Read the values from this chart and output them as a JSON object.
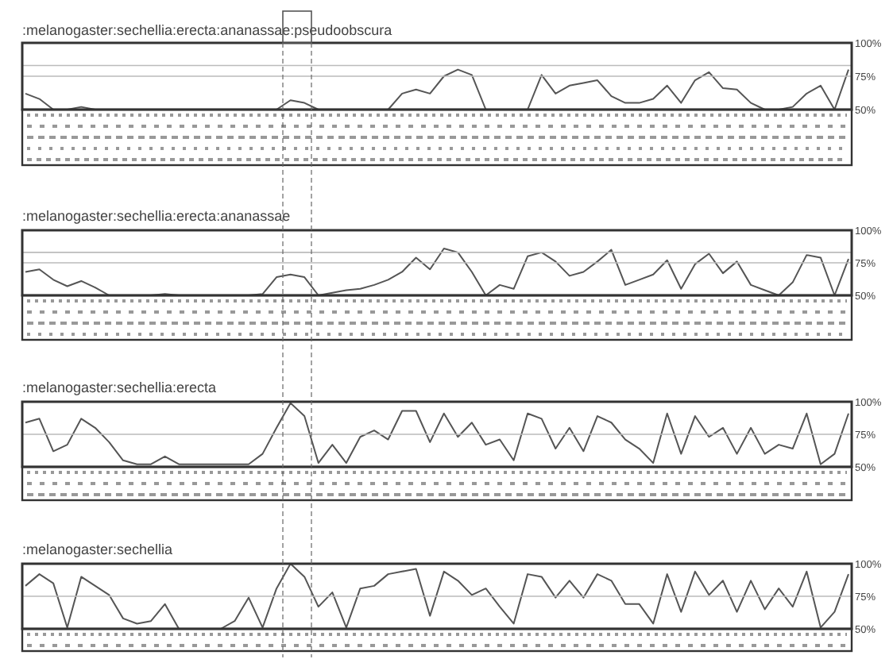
{
  "chart_data": [
    {
      "type": "line",
      "title": ":melanogaster:sechellia:erecta:ananassae:pseudoobscura",
      "categories": [
        null,
        null,
        null,
        null,
        null,
        null,
        null,
        null,
        null,
        null,
        null,
        null,
        null,
        null,
        null,
        null,
        null,
        null,
        null,
        null,
        null,
        null,
        null,
        null,
        null,
        null,
        null,
        null,
        null,
        null,
        null,
        null,
        null,
        null,
        null,
        null,
        null,
        null,
        null,
        null,
        null,
        null,
        null,
        null,
        null,
        null,
        null,
        null,
        null,
        null,
        null,
        null,
        null,
        null,
        null,
        null,
        null,
        null,
        null,
        null
      ],
      "series": [
        {
          "color": "#555555",
          "values": [
            62,
            58,
            50,
            50,
            52,
            50,
            50,
            50,
            50,
            50,
            50,
            50,
            50,
            50,
            50,
            50,
            50,
            50,
            50,
            57,
            55,
            50,
            50,
            50,
            50,
            50,
            50,
            62,
            65,
            62,
            75,
            80,
            76,
            50,
            50,
            50,
            50,
            76,
            62,
            68,
            70,
            72,
            60,
            55,
            55,
            58,
            68,
            55,
            72,
            78,
            66,
            65,
            55,
            50,
            50,
            52,
            62,
            68,
            50,
            80
          ]
        }
      ],
      "ylim": [
        50,
        100
      ],
      "yticks": [
        {
          "value": 50,
          "label": "50%"
        },
        {
          "value": 75,
          "label": "75%"
        },
        {
          "value": 100,
          "label": "100%"
        }
      ],
      "tick_labels": "y",
      "ref_lines": [
        {
          "axis": "y",
          "value": 75,
          "color": "#bbbbbb"
        },
        {
          "axis": "y",
          "value": 83,
          "color": "#bbbbbb"
        }
      ],
      "marker": "none",
      "line_style": "solid"
    },
    {
      "type": "line",
      "title": ":melanogaster:sechellia:erecta:ananassae",
      "categories": [
        null,
        null,
        null,
        null,
        null,
        null,
        null,
        null,
        null,
        null,
        null,
        null,
        null,
        null,
        null,
        null,
        null,
        null,
        null,
        null,
        null,
        null,
        null,
        null,
        null,
        null,
        null,
        null,
        null,
        null,
        null,
        null,
        null,
        null,
        null,
        null,
        null,
        null,
        null,
        null,
        null,
        null,
        null,
        null,
        null,
        null,
        null,
        null,
        null,
        null,
        null,
        null,
        null,
        null,
        null,
        null,
        null,
        null,
        null,
        null
      ],
      "series": [
        {
          "color": "#555555",
          "values": [
            68,
            70,
            62,
            57,
            61,
            56,
            50,
            50,
            50,
            50,
            51,
            50,
            50,
            50,
            50,
            50,
            50,
            51,
            64,
            66,
            64,
            50,
            52,
            54,
            55,
            58,
            62,
            68,
            79,
            70,
            86,
            83,
            68,
            50,
            58,
            55,
            80,
            83,
            76,
            65,
            68,
            76,
            85,
            58,
            62,
            66,
            77,
            55,
            74,
            82,
            67,
            76,
            58,
            54,
            50,
            60,
            81,
            79,
            50,
            78
          ]
        }
      ],
      "ylim": [
        50,
        100
      ],
      "yticks": [
        {
          "value": 50,
          "label": "50%"
        },
        {
          "value": 75,
          "label": "75%"
        },
        {
          "value": 100,
          "label": "100%"
        }
      ],
      "tick_labels": "y",
      "ref_lines": [
        {
          "axis": "y",
          "value": 75,
          "color": "#bbbbbb"
        },
        {
          "axis": "y",
          "value": 83,
          "color": "#bbbbbb"
        }
      ],
      "marker": "none",
      "line_style": "solid"
    },
    {
      "type": "line",
      "title": ":melanogaster:sechellia:erecta",
      "categories": [
        null,
        null,
        null,
        null,
        null,
        null,
        null,
        null,
        null,
        null,
        null,
        null,
        null,
        null,
        null,
        null,
        null,
        null,
        null,
        null,
        null,
        null,
        null,
        null,
        null,
        null,
        null,
        null,
        null,
        null,
        null,
        null,
        null,
        null,
        null,
        null,
        null,
        null,
        null,
        null,
        null,
        null,
        null,
        null,
        null,
        null,
        null,
        null,
        null,
        null,
        null,
        null,
        null,
        null,
        null,
        null,
        null,
        null,
        null,
        null
      ],
      "series": [
        {
          "color": "#555555",
          "values": [
            84,
            87,
            62,
            67,
            87,
            80,
            69,
            55,
            52,
            52,
            58,
            52,
            52,
            52,
            52,
            52,
            52,
            60,
            80,
            99,
            89,
            53,
            67,
            53,
            73,
            78,
            71,
            93,
            93,
            69,
            91,
            73,
            84,
            67,
            71,
            55,
            91,
            87,
            64,
            80,
            62,
            89,
            84,
            71,
            64,
            53,
            91,
            60,
            89,
            73,
            80,
            60,
            80,
            60,
            67,
            64,
            91,
            52,
            60,
            91
          ]
        }
      ],
      "ylim": [
        50,
        100
      ],
      "yticks": [
        {
          "value": 50,
          "label": "50%"
        },
        {
          "value": 75,
          "label": "75%"
        },
        {
          "value": 100,
          "label": "100%"
        }
      ],
      "tick_labels": "y",
      "ref_lines": [
        {
          "axis": "y",
          "value": 75,
          "color": "#bbbbbb"
        }
      ],
      "marker": "none",
      "line_style": "solid"
    },
    {
      "type": "line",
      "title": ":melanogaster:sechellia",
      "categories": [
        null,
        null,
        null,
        null,
        null,
        null,
        null,
        null,
        null,
        null,
        null,
        null,
        null,
        null,
        null,
        null,
        null,
        null,
        null,
        null,
        null,
        null,
        null,
        null,
        null,
        null,
        null,
        null,
        null,
        null,
        null,
        null,
        null,
        null,
        null,
        null,
        null,
        null,
        null,
        null,
        null,
        null,
        null,
        null,
        null,
        null,
        null,
        null,
        null,
        null,
        null,
        null,
        null,
        null,
        null,
        null,
        null,
        null,
        null,
        null
      ],
      "series": [
        {
          "color": "#555555",
          "values": [
            83,
            92,
            85,
            51,
            90,
            83,
            76,
            58,
            54,
            56,
            69,
            50,
            50,
            50,
            50,
            56,
            74,
            51,
            81,
            100,
            90,
            67,
            78,
            51,
            81,
            83,
            92,
            94,
            96,
            60,
            94,
            87,
            76,
            81,
            67,
            54,
            92,
            90,
            74,
            87,
            74,
            92,
            87,
            69,
            69,
            54,
            92,
            63,
            94,
            76,
            87,
            63,
            87,
            65,
            81,
            67,
            94,
            51,
            63,
            92
          ]
        }
      ],
      "ylim": [
        50,
        100
      ],
      "yticks": [
        {
          "value": 50,
          "label": "50%"
        },
        {
          "value": 75,
          "label": "75%"
        },
        {
          "value": 100,
          "label": "100%"
        }
      ],
      "tick_labels": "y",
      "ref_lines": [
        {
          "axis": "y",
          "value": 75,
          "color": "#bbbbbb"
        }
      ],
      "marker": "none",
      "line_style": "solid"
    }
  ]
}
